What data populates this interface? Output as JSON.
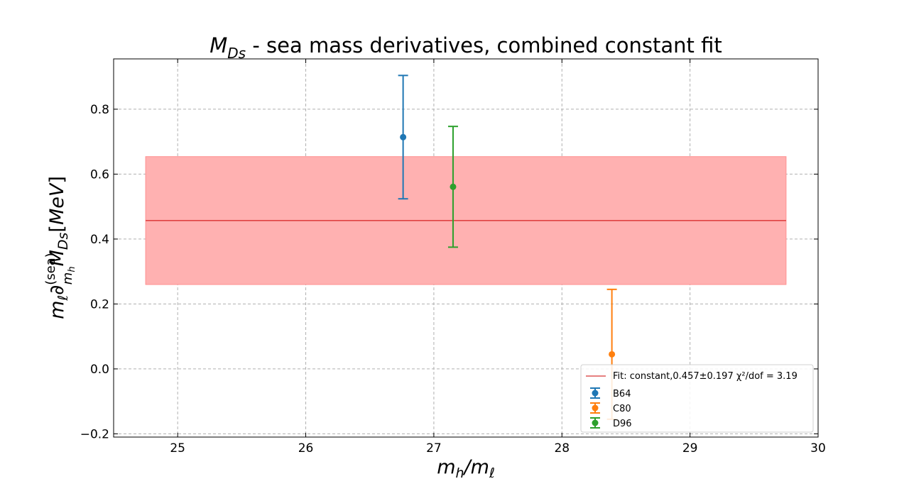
{
  "chart_data": {
    "type": "scatter",
    "title": {
      "pre": "M",
      "sub": "Ds",
      "post": " - sea mass derivatives, combined constant fit"
    },
    "xlabel": "m_h/m_ℓ",
    "ylabel": "m_ℓ ∂^(sea)_{m_h} M_Ds [MeV]",
    "xlim": [
      24.5,
      30.0
    ],
    "ylim": [
      -0.21,
      0.955
    ],
    "xticks": [
      25,
      26,
      27,
      28,
      29,
      30
    ],
    "yticks": [
      -0.2,
      0.0,
      0.2,
      0.4,
      0.6,
      0.8
    ],
    "xtick_labels": [
      "25",
      "26",
      "27",
      "28",
      "29",
      "30"
    ],
    "ytick_labels": [
      "−0.2",
      "0.0",
      "0.2",
      "0.4",
      "0.6",
      "0.8"
    ],
    "grid": true,
    "legend_position": "lower right",
    "series": [
      {
        "name": "B64",
        "color": "#1f77b4",
        "x": 26.76,
        "y": 0.714,
        "yerr": 0.19
      },
      {
        "name": "C80",
        "color": "#ff7f0e",
        "x": 28.39,
        "y": 0.045,
        "yerr": 0.2
      },
      {
        "name": "D96",
        "color": "#2ca02c",
        "x": 27.15,
        "y": 0.561,
        "yerr": 0.186
      }
    ],
    "fit": {
      "legend_text": "Fit: constant,0.457±0.197 χ²/dof = 3.19",
      "value": 0.457,
      "error": 0.197,
      "x_range": [
        24.75,
        29.75
      ],
      "line_color": "#cc0000",
      "band_color": "#ffb1b1",
      "band_edge_color": "#ff9090"
    }
  }
}
